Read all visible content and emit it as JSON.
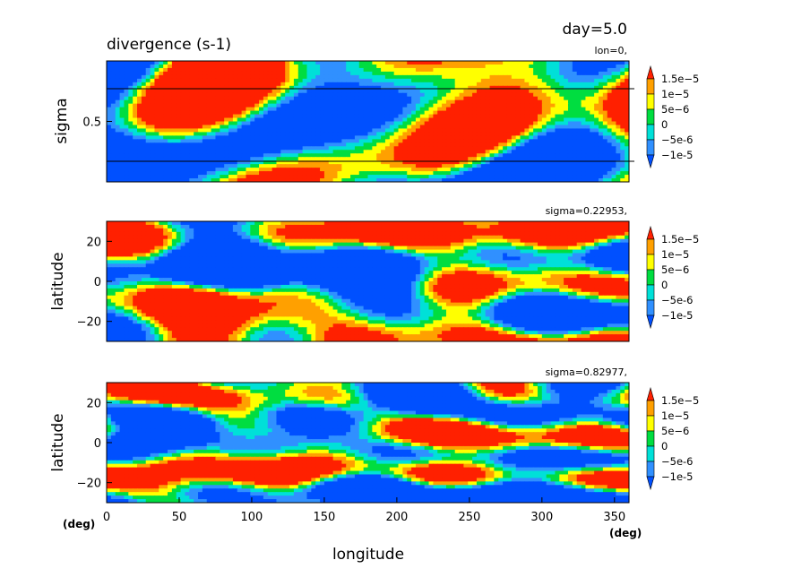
{
  "chart_data": {
    "type": "heatmap",
    "title": "divergence (s-1)",
    "time_label": "day=5.0",
    "xlabel": "longitude",
    "x_unit": "(deg)",
    "x_unit_right": "(deg)",
    "x_range": [
      0,
      360
    ],
    "x_ticks": [
      0,
      50,
      100,
      150,
      200,
      250,
      300,
      350
    ],
    "colorbar": {
      "levels": [
        "1.5e-5",
        "1e-5",
        "5e-6",
        "0",
        "-5e-6",
        "-1e-5"
      ],
      "colors": [
        "#0050ff",
        "#3090ff",
        "#00e0d8",
        "#00dd40",
        "#ffff00",
        "#ffa000",
        "#ff2000"
      ],
      "bounds": [
        -1e-05,
        -5e-06,
        0,
        5e-06,
        1e-05,
        1.5e-05
      ]
    },
    "panels": [
      {
        "id": "sigma-longitude",
        "slice_label": "lon=0,",
        "ylabel": "sigma",
        "y_range": [
          0,
          1
        ],
        "y_ticks": [
          0.5
        ],
        "y_tick_labels": [
          "0.5"
        ],
        "reference_lines_sigma": [
          0.22953,
          0.82977
        ]
      },
      {
        "id": "latitude-longitude-upper",
        "slice_label": "sigma=0.22953,",
        "ylabel": "latitude",
        "y_range": [
          -30,
          30
        ],
        "y_ticks": [
          20,
          0,
          -20
        ],
        "y_tick_labels": [
          "20",
          "0",
          "−20"
        ]
      },
      {
        "id": "latitude-longitude-lower",
        "slice_label": "sigma=0.82977,",
        "ylabel": "latitude",
        "y_range": [
          -30,
          30
        ],
        "y_ticks": [
          20,
          0,
          -20
        ],
        "y_tick_labels": [
          "20",
          "0",
          "−20"
        ]
      }
    ]
  }
}
